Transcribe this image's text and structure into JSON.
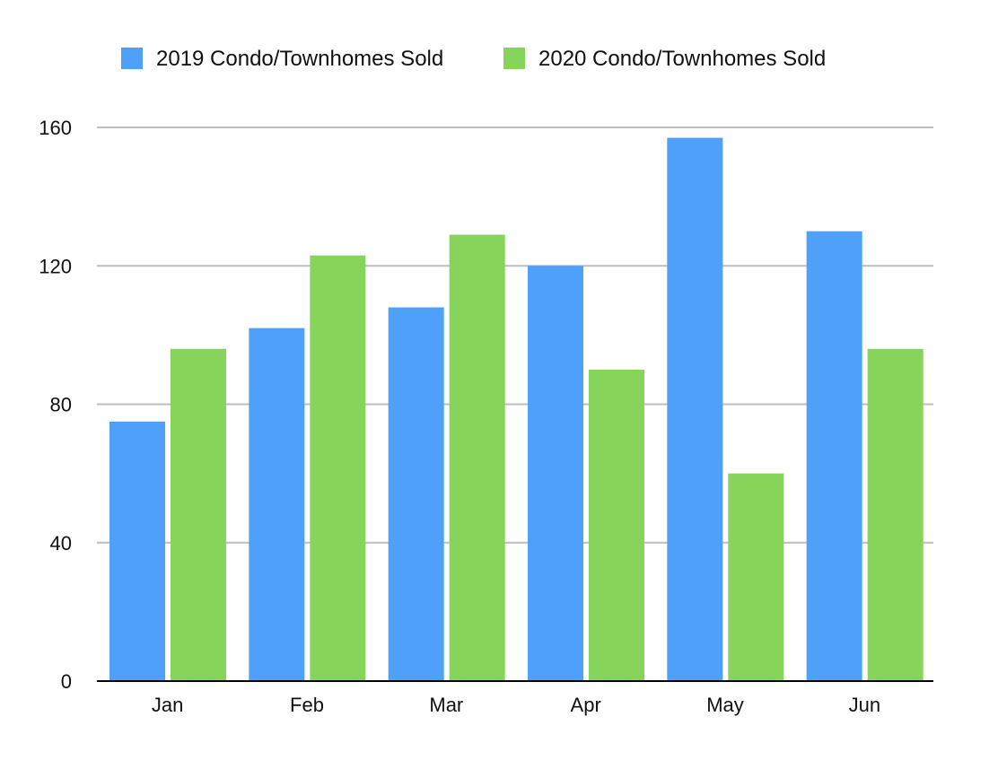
{
  "chart_data": {
    "type": "bar",
    "categories": [
      "Jan",
      "Feb",
      "Mar",
      "Apr",
      "May",
      "Jun"
    ],
    "series": [
      {
        "name": "2019 Condo/Townhomes Sold",
        "color": "#4fa0f8",
        "values": [
          75,
          102,
          108,
          120,
          157,
          130
        ]
      },
      {
        "name": "2020 Condo/Townhomes Sold",
        "color": "#86d45a",
        "values": [
          96,
          123,
          129,
          90,
          60,
          96
        ]
      }
    ],
    "title": "",
    "xlabel": "",
    "ylabel": "",
    "ylim": [
      0,
      160
    ],
    "yticks": [
      0,
      40,
      80,
      120,
      160
    ],
    "grid": true,
    "legend_position": "top"
  }
}
